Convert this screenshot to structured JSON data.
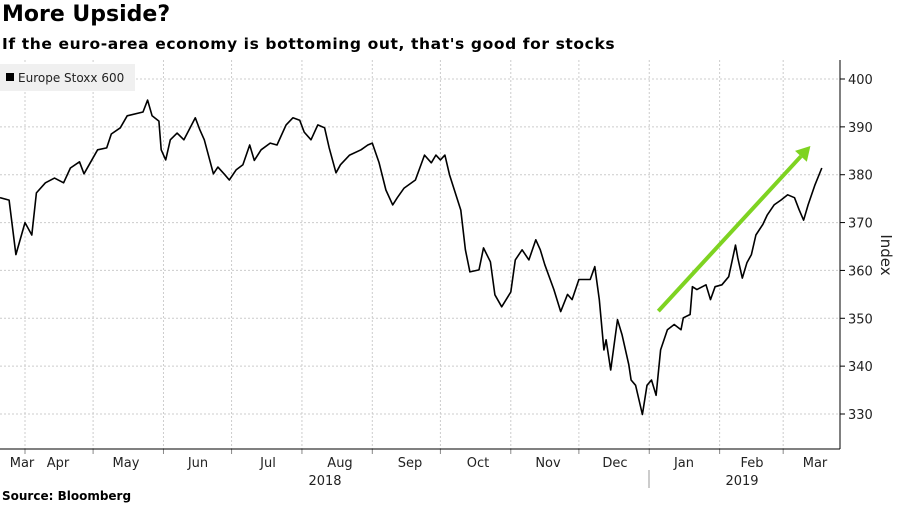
{
  "title": "More Upside?",
  "subtitle": "If the euro-area economy is bottoming out, that's good for stocks",
  "source": "Source: Bloomberg",
  "chart_data": {
    "type": "line",
    "title": "More Upside?",
    "subtitle": "If the euro-area economy is bottoming out, that's good for stocks",
    "ylabel": "Index",
    "xlabel": "",
    "ylim": [
      325,
      403
    ],
    "yticks": [
      330,
      340,
      350,
      360,
      370,
      380,
      390,
      400
    ],
    "xlim": [
      "2018-03-21",
      "2019-03-19"
    ],
    "xtick_labels": [
      "Mar",
      "Apr",
      "May",
      "Jun",
      "Jul",
      "Aug",
      "Sep",
      "Oct",
      "Nov",
      "Dec",
      "Jan",
      "Feb",
      "Mar"
    ],
    "year_labels": [
      "2018",
      "2019"
    ],
    "grid": true,
    "legend_position": "top-left",
    "line_color": "#000000",
    "annotation": {
      "type": "trend-arrow",
      "color": "#7ed321",
      "from": [
        "2019-01-05",
        351.5
      ],
      "to": [
        "2019-03-13",
        386
      ]
    },
    "series": [
      {
        "name": "Europe Stoxx 600",
        "points": [
          [
            "2018-03-21",
            375.2
          ],
          [
            "2018-03-25",
            374.7
          ],
          [
            "2018-03-28",
            363.3
          ],
          [
            "2018-04-01",
            370.0
          ],
          [
            "2018-04-04",
            367.4
          ],
          [
            "2018-04-06",
            376.2
          ],
          [
            "2018-04-10",
            378.3
          ],
          [
            "2018-04-14",
            379.3
          ],
          [
            "2018-04-18",
            378.3
          ],
          [
            "2018-04-21",
            381.4
          ],
          [
            "2018-04-25",
            382.7
          ],
          [
            "2018-04-27",
            380.2
          ],
          [
            "2018-05-03",
            385.2
          ],
          [
            "2018-05-07",
            385.6
          ],
          [
            "2018-05-09",
            388.5
          ],
          [
            "2018-05-13",
            389.8
          ],
          [
            "2018-05-16",
            392.3
          ],
          [
            "2018-05-23",
            393.1
          ],
          [
            "2018-05-25",
            395.6
          ],
          [
            "2018-05-27",
            392.3
          ],
          [
            "2018-05-30",
            391.2
          ],
          [
            "2018-05-31",
            385.2
          ],
          [
            "2018-06-02",
            383.1
          ],
          [
            "2018-06-04",
            387.3
          ],
          [
            "2018-06-07",
            388.7
          ],
          [
            "2018-06-10",
            387.3
          ],
          [
            "2018-06-15",
            391.9
          ],
          [
            "2018-06-17",
            389.4
          ],
          [
            "2018-06-19",
            387.3
          ],
          [
            "2018-06-23",
            380.2
          ],
          [
            "2018-06-25",
            381.6
          ],
          [
            "2018-06-28",
            380.0
          ],
          [
            "2018-06-30",
            378.9
          ],
          [
            "2018-07-03",
            381.0
          ],
          [
            "2018-07-06",
            382.1
          ],
          [
            "2018-07-09",
            386.2
          ],
          [
            "2018-07-11",
            383.0
          ],
          [
            "2018-07-14",
            385.2
          ],
          [
            "2018-07-18",
            386.6
          ],
          [
            "2018-07-21",
            386.2
          ],
          [
            "2018-07-25",
            390.4
          ],
          [
            "2018-07-28",
            391.9
          ],
          [
            "2018-07-31",
            391.4
          ],
          [
            "2018-08-02",
            388.9
          ],
          [
            "2018-08-05",
            387.3
          ],
          [
            "2018-08-08",
            390.4
          ],
          [
            "2018-08-11",
            389.8
          ],
          [
            "2018-08-13",
            385.6
          ],
          [
            "2018-08-16",
            380.4
          ],
          [
            "2018-08-18",
            382.1
          ],
          [
            "2018-08-22",
            384.1
          ],
          [
            "2018-08-27",
            385.2
          ],
          [
            "2018-08-30",
            386.2
          ],
          [
            "2018-09-01",
            386.6
          ],
          [
            "2018-09-04",
            382.5
          ],
          [
            "2018-09-07",
            376.8
          ],
          [
            "2018-09-10",
            373.7
          ],
          [
            "2018-09-12",
            375.2
          ],
          [
            "2018-09-15",
            377.2
          ],
          [
            "2018-09-20",
            378.9
          ],
          [
            "2018-09-24",
            384.1
          ],
          [
            "2018-09-27",
            382.5
          ],
          [
            "2018-09-29",
            384.1
          ],
          [
            "2018-10-01",
            383.1
          ],
          [
            "2018-10-03",
            384.1
          ],
          [
            "2018-10-05",
            380.0
          ],
          [
            "2018-10-10",
            372.6
          ],
          [
            "2018-10-12",
            364.3
          ],
          [
            "2018-10-14",
            359.7
          ],
          [
            "2018-10-18",
            360.1
          ],
          [
            "2018-10-20",
            364.7
          ],
          [
            "2018-10-23",
            361.8
          ],
          [
            "2018-10-25",
            354.9
          ],
          [
            "2018-10-28",
            352.4
          ],
          [
            "2018-11-01",
            355.5
          ],
          [
            "2018-11-03",
            362.2
          ],
          [
            "2018-11-06",
            364.3
          ],
          [
            "2018-11-09",
            362.2
          ],
          [
            "2018-11-12",
            366.4
          ],
          [
            "2018-11-14",
            364.3
          ],
          [
            "2018-11-16",
            361.2
          ],
          [
            "2018-11-20",
            356.0
          ],
          [
            "2018-11-23",
            351.4
          ],
          [
            "2018-11-26",
            355.0
          ],
          [
            "2018-11-28",
            353.9
          ],
          [
            "2018-12-01",
            358.1
          ],
          [
            "2018-12-06",
            358.1
          ],
          [
            "2018-12-08",
            360.8
          ],
          [
            "2018-12-10",
            353.9
          ],
          [
            "2018-12-12",
            343.4
          ],
          [
            "2018-12-13",
            345.5
          ],
          [
            "2018-12-15",
            339.2
          ],
          [
            "2018-12-18",
            349.7
          ],
          [
            "2018-12-20",
            346.6
          ],
          [
            "2018-12-23",
            340.3
          ],
          [
            "2018-12-24",
            337.1
          ],
          [
            "2018-12-26",
            336.0
          ],
          [
            "2018-12-29",
            329.9
          ],
          [
            "2018-12-31",
            336.0
          ],
          [
            "2019-01-02",
            337.1
          ],
          [
            "2019-01-04",
            333.9
          ],
          [
            "2019-01-06",
            343.4
          ],
          [
            "2019-01-09",
            347.6
          ],
          [
            "2019-01-12",
            348.7
          ],
          [
            "2019-01-15",
            347.6
          ],
          [
            "2019-01-16",
            350.1
          ],
          [
            "2019-01-19",
            350.8
          ],
          [
            "2019-01-20",
            356.6
          ],
          [
            "2019-01-22",
            356.0
          ],
          [
            "2019-01-26",
            357.0
          ],
          [
            "2019-01-28",
            353.9
          ],
          [
            "2019-01-30",
            356.6
          ],
          [
            "2019-02-02",
            357.0
          ],
          [
            "2019-02-05",
            358.7
          ],
          [
            "2019-02-08",
            365.3
          ],
          [
            "2019-02-09",
            362.6
          ],
          [
            "2019-02-11",
            358.4
          ],
          [
            "2019-02-13",
            361.6
          ],
          [
            "2019-02-15",
            363.3
          ],
          [
            "2019-02-17",
            367.4
          ],
          [
            "2019-02-20",
            369.6
          ],
          [
            "2019-02-22",
            371.6
          ],
          [
            "2019-02-25",
            373.7
          ],
          [
            "2019-02-28",
            374.7
          ],
          [
            "2019-03-03",
            375.8
          ],
          [
            "2019-03-06",
            375.2
          ],
          [
            "2019-03-08",
            372.7
          ],
          [
            "2019-03-10",
            370.5
          ],
          [
            "2019-03-12",
            373.7
          ],
          [
            "2019-03-15",
            377.9
          ],
          [
            "2019-03-18",
            381.4
          ]
        ]
      }
    ]
  }
}
